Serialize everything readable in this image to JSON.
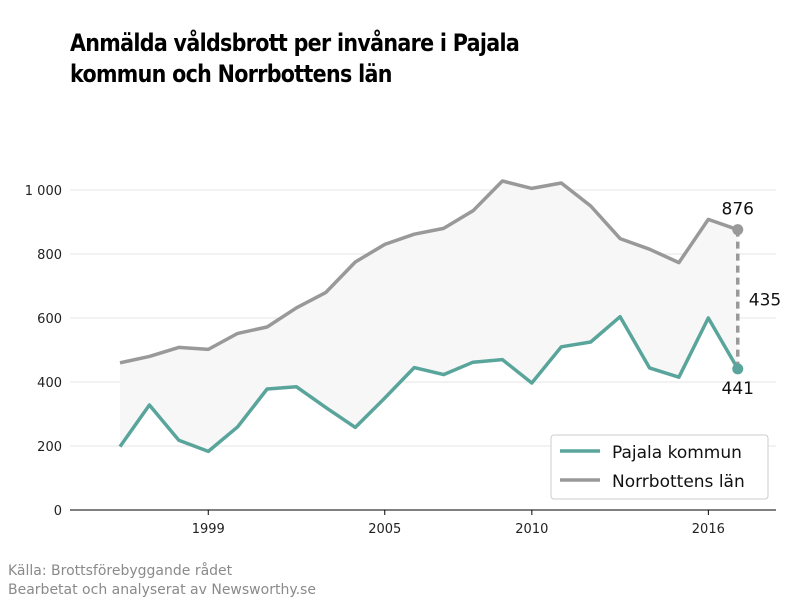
{
  "title": "Anmälda våldsbrott per invånare i Pajala kommun och Norrbottens län",
  "source_line1": "Källa: Brottsförebyggande rådet",
  "source_line2": "Bearbetat och analyserat av Newsworthy.se",
  "colors": {
    "pajala": "#5aa59b",
    "norrbotten": "#999999",
    "fill": "#f7f7f7",
    "grid": "#e6e6e6",
    "axis": "#000000"
  },
  "chart_data": {
    "type": "line",
    "x": [
      1996,
      1997,
      1998,
      1999,
      2000,
      2001,
      2002,
      2003,
      2004,
      2005,
      2006,
      2007,
      2008,
      2009,
      2010,
      2011,
      2012,
      2013,
      2014,
      2015,
      2016,
      2017
    ],
    "series": [
      {
        "name": "Pajala kommun",
        "values": [
          198,
          328,
          218,
          183,
          260,
          378,
          385,
          320,
          258,
          350,
          445,
          423,
          462,
          470,
          397,
          510,
          525,
          604,
          444,
          415,
          600,
          441
        ]
      },
      {
        "name": "Norrbottens län",
        "values": [
          460,
          480,
          508,
          502,
          552,
          572,
          632,
          680,
          775,
          830,
          862,
          880,
          935,
          1028,
          1005,
          1022,
          950,
          848,
          815,
          773,
          908,
          876
        ]
      }
    ],
    "ylim": [
      0,
      1000
    ],
    "yticks": [
      0,
      200,
      400,
      600,
      800,
      1000
    ],
    "ytick_labels": [
      "0",
      "200",
      "400",
      "600",
      "800",
      "1 000"
    ],
    "xticks": [
      1999,
      2005,
      2010,
      2016
    ],
    "xtick_labels": [
      "1999",
      "2005",
      "2010",
      "2016"
    ],
    "annotations": {
      "last_norrbotten": "876",
      "last_pajala": "441",
      "difference": "435"
    },
    "legend": [
      "Pajala kommun",
      "Norrbottens län"
    ],
    "legend_position": "bottom-right",
    "grid": true
  }
}
